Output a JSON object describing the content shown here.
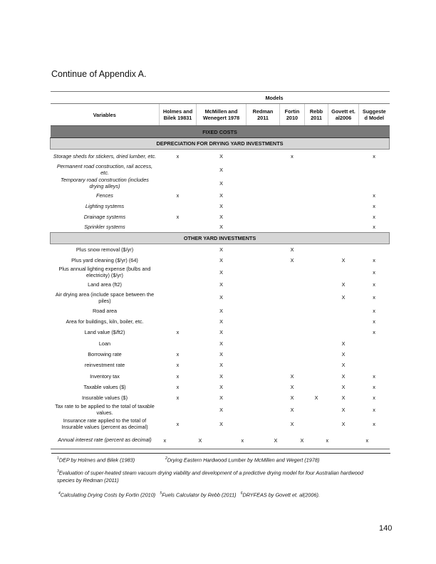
{
  "title": "Continue of Appendix A.",
  "table": {
    "models_label": "Models",
    "variables_label": "Variables",
    "columns": [
      "Holmes and Bilek 19831",
      "McMillen and Wenegert 1978",
      "Redman 2011",
      "Fortin 2010",
      "Rebb 2011",
      "Govett et. al2006",
      "Suggeste d Model"
    ],
    "fixed_costs": "FIXED COSTS",
    "section1": {
      "title": "DEPRECIATION FOR DRYING YARD INVESTMENTS",
      "rows": [
        {
          "label": "Storage sheds for stickers, dried lumber, etc.",
          "marks": [
            "x",
            "X",
            "",
            "x",
            "",
            "",
            "x"
          ]
        },
        {
          "label": "Permanent road construction, rail access, etc.",
          "marks": [
            "",
            "X",
            "",
            "",
            "",
            "",
            ""
          ]
        },
        {
          "label": "Temporary road construction (includes drying alleys)",
          "marks": [
            "",
            "X",
            "",
            "",
            "",
            "",
            ""
          ]
        },
        {
          "label": "Fences",
          "marks": [
            "x",
            "X",
            "",
            "",
            "",
            "",
            "x"
          ]
        },
        {
          "label": "Lighting systems",
          "marks": [
            "",
            "X",
            "",
            "",
            "",
            "",
            "x"
          ]
        },
        {
          "label": "Drainage systems",
          "marks": [
            "x",
            "X",
            "",
            "",
            "",
            "",
            "x"
          ]
        },
        {
          "label": "Sprinkler systems",
          "marks": [
            "",
            "X",
            "",
            "",
            "",
            "",
            "x"
          ]
        }
      ]
    },
    "section2": {
      "title": "OTHER  YARD INVESTMENTS",
      "rows": [
        {
          "label": "Plus snow removal ($/yr)",
          "marks": [
            "",
            "X",
            "",
            "X",
            "",
            "",
            ""
          ]
        },
        {
          "label": "Plus yard cleaning ($/yr) (64)",
          "marks": [
            "",
            "X",
            "",
            "X",
            "",
            "X",
            "x"
          ]
        },
        {
          "label": "Plus annual lighting expense (bulbs and electricity) ($/yr)",
          "marks": [
            "",
            "X",
            "",
            "",
            "",
            "",
            "x"
          ]
        },
        {
          "label": "Land area (ft2)",
          "marks": [
            "",
            "X",
            "",
            "",
            "",
            "X",
            "x"
          ]
        },
        {
          "label": "Air drying area (include space between the piles)",
          "marks": [
            "",
            "X",
            "",
            "",
            "",
            "X",
            "x"
          ]
        },
        {
          "label": "Road area",
          "marks": [
            "",
            "X",
            "",
            "",
            "",
            "",
            "x"
          ]
        },
        {
          "label": "Area for buildings, kiln, boiler, etc.",
          "marks": [
            "",
            "X",
            "",
            "",
            "",
            "",
            "x"
          ]
        },
        {
          "label": "Land value ($/ft2)",
          "marks": [
            "x",
            "X",
            "",
            "",
            "",
            "",
            "x"
          ]
        },
        {
          "label": "Loan",
          "marks": [
            "",
            "X",
            "",
            "",
            "",
            "X",
            ""
          ]
        },
        {
          "label": "Borrowing rate",
          "marks": [
            "x",
            "X",
            "",
            "",
            "",
            "X",
            ""
          ]
        },
        {
          "label": "reinvestment rate",
          "marks": [
            "x",
            "X",
            "",
            "",
            "",
            "X",
            ""
          ]
        },
        {
          "label": "Inventory tax",
          "marks": [
            "x",
            "X",
            "",
            "X",
            "",
            "X",
            "x"
          ]
        },
        {
          "label": "Taxable values ($)",
          "marks": [
            "x",
            "X",
            "",
            "X",
            "",
            "X",
            "x"
          ]
        },
        {
          "label": "Insurable values ($)",
          "marks": [
            "x",
            "X",
            "",
            "X",
            "X",
            "X",
            "x"
          ]
        },
        {
          "label": "Tax rate to be applied to the total of taxable values.",
          "marks": [
            "",
            "X",
            "",
            "X",
            "",
            "X",
            "x"
          ]
        },
        {
          "label": "Insurance rate applied to the total of Insurable values (percent as decimal)",
          "marks": [
            "x",
            "X",
            "",
            "X",
            "",
            "X",
            "x"
          ]
        }
      ]
    },
    "last_row": {
      "label": "Annual interest rate (percent as decimal)",
      "marks": [
        "x",
        "X",
        "x",
        "X",
        "X",
        "x",
        "x"
      ]
    }
  },
  "footnotes": {
    "n1": "DEP by Holmes and Bilek (1983)",
    "n2": "Drying Eastern Hardwood Lumber by McMillen and Wegert (1978)",
    "n3a": "Evaluation of super-heated steam vacuum drying viability and development of a predictive drying model for four Australian hardwood",
    "n3b": "species by Redman (2011)",
    "n4": "Calculating Drying Costs by Fortin (2010)",
    "n5": "Fuels Calculator by Rebb (2011)",
    "n6": "DRYFEAS by Govett et. al(2006)."
  },
  "page_number": "140"
}
